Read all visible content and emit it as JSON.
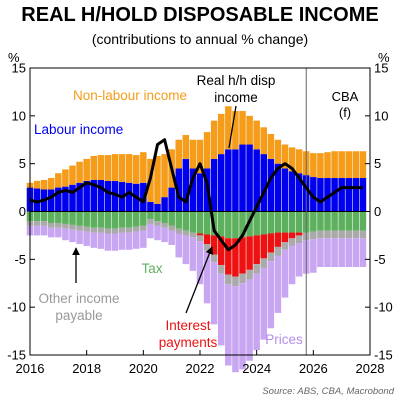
{
  "chart_data": {
    "type": "bar",
    "title": "REAL H/HOLD DISPOSABLE INCOME",
    "subtitle": "(contributions to annual % change)",
    "ylabel_left": "%",
    "ylabel_right": "%",
    "ylim": [
      -15,
      15
    ],
    "xlim": [
      2016,
      2028
    ],
    "grid": false,
    "x_ticks": [
      "2016",
      "2018",
      "2020",
      "2022",
      "2024",
      "2026",
      "2028"
    ],
    "y_ticks": [
      "15",
      "10",
      "5",
      "0",
      "-5",
      "-10",
      "-15"
    ],
    "forecast_start": 2025.75,
    "forecast_label": [
      "CBA",
      "(f)"
    ],
    "x": [
      2016.0,
      2016.25,
      2016.5,
      2016.75,
      2017.0,
      2017.25,
      2017.5,
      2017.75,
      2018.0,
      2018.25,
      2018.5,
      2018.75,
      2019.0,
      2019.25,
      2019.5,
      2019.75,
      2020.0,
      2020.25,
      2020.5,
      2020.75,
      2021.0,
      2021.25,
      2021.5,
      2021.75,
      2022.0,
      2022.25,
      2022.5,
      2022.75,
      2023.0,
      2023.25,
      2023.5,
      2023.75,
      2024.0,
      2024.25,
      2024.5,
      2024.75,
      2025.0,
      2025.25,
      2025.5,
      2025.75,
      2026.0,
      2026.25,
      2026.5,
      2026.75,
      2027.0,
      2027.25,
      2027.5,
      2027.75
    ],
    "series": [
      {
        "name": "Labour income",
        "color": "#0000ee",
        "values": [
          2.5,
          2.4,
          2.3,
          2.3,
          2.5,
          2.6,
          2.8,
          3.0,
          3.2,
          3.3,
          3.3,
          3.2,
          3.2,
          3.1,
          3.0,
          2.9,
          3.0,
          1.0,
          0.8,
          1.5,
          2.5,
          4.5,
          5.5,
          4.5,
          4.0,
          4.5,
          5.5,
          6.0,
          6.5,
          6.5,
          7.0,
          7.0,
          6.5,
          6.0,
          5.5,
          5.0,
          4.5,
          4.2,
          4.0,
          3.8,
          3.6,
          3.5,
          3.5,
          3.5,
          3.5,
          3.5,
          3.5,
          3.5
        ]
      },
      {
        "name": "Non-labour income",
        "color": "#f59c1a",
        "values": [
          0.5,
          0.8,
          1.0,
          1.2,
          1.5,
          1.8,
          2.0,
          2.2,
          2.3,
          2.5,
          2.6,
          2.7,
          2.8,
          2.9,
          3.0,
          3.0,
          3.2,
          4.5,
          5.0,
          4.5,
          4.0,
          3.0,
          2.5,
          3.0,
          3.5,
          3.8,
          4.0,
          4.2,
          4.5,
          4.0,
          3.5,
          3.0,
          3.0,
          2.8,
          2.6,
          2.5,
          2.5,
          2.5,
          2.5,
          2.5,
          2.5,
          2.6,
          2.7,
          2.8,
          2.8,
          2.8,
          2.8,
          2.8
        ]
      },
      {
        "name": "Tax",
        "color": "#5db05d",
        "values": [
          -1.0,
          -1.0,
          -1.0,
          -1.2,
          -1.2,
          -1.3,
          -1.4,
          -1.5,
          -1.6,
          -1.7,
          -1.7,
          -1.8,
          -1.8,
          -1.7,
          -1.7,
          -1.6,
          -1.5,
          -0.8,
          -1.0,
          -1.2,
          -1.5,
          -1.8,
          -2.0,
          -2.2,
          -2.3,
          -2.4,
          -2.5,
          -2.6,
          -2.8,
          -2.8,
          -2.7,
          -2.6,
          -2.5,
          -2.4,
          -2.3,
          -2.2,
          -2.2,
          -2.2,
          -2.2,
          -2.2,
          -2.1,
          -2.0,
          -2.0,
          -2.0,
          -2.0,
          -2.0,
          -2.0,
          -2.0
        ]
      },
      {
        "name": "Interest payments",
        "color": "#ee1111",
        "values": [
          0.0,
          0.0,
          0.0,
          0.0,
          0.0,
          0.0,
          0.0,
          0.0,
          0.0,
          0.0,
          0.0,
          0.0,
          0.0,
          0.0,
          0.0,
          0.0,
          0.0,
          0.0,
          0.0,
          0.0,
          0.0,
          0.0,
          0.0,
          0.0,
          -0.2,
          -1.0,
          -2.0,
          -3.0,
          -3.8,
          -4.0,
          -3.8,
          -3.5,
          -3.0,
          -2.5,
          -2.0,
          -1.5,
          -1.0,
          -0.6,
          -0.3,
          0.0,
          0.0,
          0.0,
          0.0,
          0.0,
          0.0,
          0.0,
          0.0,
          0.0
        ]
      },
      {
        "name": "Other income payable",
        "color": "#aaaaaa",
        "values": [
          -0.5,
          -0.5,
          -0.5,
          -0.5,
          -0.5,
          -0.5,
          -0.5,
          -0.5,
          -0.5,
          -0.5,
          -0.5,
          -0.5,
          -0.5,
          -0.5,
          -0.5,
          -0.5,
          -0.5,
          -0.5,
          -0.5,
          -0.5,
          -0.5,
          -0.5,
          -0.5,
          -0.5,
          -0.6,
          -0.7,
          -0.8,
          -0.9,
          -1.0,
          -1.0,
          -1.0,
          -1.0,
          -1.0,
          -1.0,
          -0.9,
          -0.9,
          -0.8,
          -0.8,
          -0.8,
          -0.8,
          -0.8,
          -0.8,
          -0.8,
          -0.8,
          -0.8,
          -0.8,
          -0.8,
          -0.8
        ]
      },
      {
        "name": "Prices",
        "color": "#c8a6f2",
        "values": [
          -1.0,
          -1.0,
          -1.0,
          -1.0,
          -1.0,
          -1.2,
          -1.3,
          -1.4,
          -1.5,
          -1.6,
          -1.7,
          -1.8,
          -1.8,
          -1.8,
          -1.8,
          -1.8,
          -1.8,
          -1.5,
          -1.5,
          -1.5,
          -1.5,
          -2.5,
          -3.0,
          -3.5,
          -4.5,
          -5.5,
          -6.5,
          -7.5,
          -8.5,
          -9.0,
          -9.0,
          -8.5,
          -8.0,
          -7.5,
          -7.0,
          -6.0,
          -5.0,
          -4.0,
          -3.5,
          -3.5,
          -3.5,
          -3.0,
          -3.0,
          -3.0,
          -3.0,
          -3.0,
          -3.0,
          -3.0
        ]
      }
    ],
    "line": {
      "name": "Real h/h disp income",
      "color": "#000000",
      "values": [
        1.2,
        1.0,
        1.2,
        1.5,
        2.0,
        2.2,
        2.0,
        2.5,
        3.0,
        2.8,
        2.5,
        2.0,
        1.8,
        1.5,
        2.0,
        1.5,
        1.0,
        3.5,
        7.0,
        7.5,
        4.5,
        1.5,
        1.0,
        3.5,
        5.0,
        3.0,
        -2.0,
        -3.0,
        -4.0,
        -3.5,
        -2.5,
        -1.0,
        0.5,
        2.0,
        3.5,
        4.5,
        5.0,
        4.5,
        3.5,
        2.5,
        1.5,
        1.0,
        1.5,
        2.0,
        2.5,
        2.5,
        2.5,
        2.5
      ]
    },
    "annotations": [
      {
        "text": [
          "Non-labour income"
        ],
        "color": "#f59c1a"
      },
      {
        "text": [
          "Labour income"
        ],
        "color": "#0000ee"
      },
      {
        "text": [
          "Real h/h disp",
          "income"
        ],
        "color": "#000000"
      },
      {
        "text": [
          "Tax"
        ],
        "color": "#5db05d"
      },
      {
        "text": [
          "Other income",
          "payable"
        ],
        "color": "#999999"
      },
      {
        "text": [
          "Interest",
          "payments"
        ],
        "color": "#ee1111"
      },
      {
        "text": [
          "Prices"
        ],
        "color": "#b48ee8"
      }
    ],
    "source": "Source: ABS, CBA, Macrobond"
  }
}
